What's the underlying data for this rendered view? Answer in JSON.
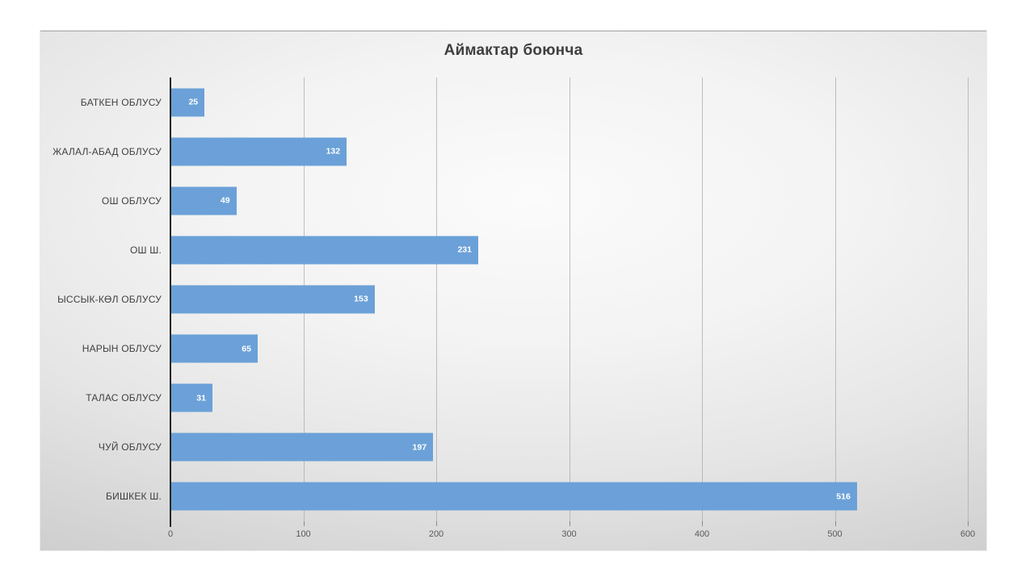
{
  "chart_data": {
    "type": "bar",
    "orientation": "horizontal",
    "title": "Аймактар боюнча",
    "categories": [
      "БАТКЕН ОБЛУСУ",
      "ЖАЛАЛ-АБАД ОБЛУСУ",
      "ОШ ОБЛУСУ",
      "ОШ Ш.",
      "ЫССЫК-КӨЛ ОБЛУСУ",
      "НАРЫН ОБЛУСУ",
      "ТАЛАС ОБЛУСУ",
      "ЧУЙ ОБЛУСУ",
      "БИШКЕК Ш."
    ],
    "values": [
      25,
      132,
      49,
      231,
      153,
      65,
      31,
      197,
      516
    ],
    "value_labels_position": "inside-end",
    "xlim": [
      0,
      600
    ],
    "xticks": [
      0,
      100,
      200,
      300,
      400,
      500,
      600
    ],
    "grid": true,
    "legend": false,
    "xlabel": "",
    "ylabel": ""
  },
  "colors": {
    "bar_fill": "#6BA1D8",
    "bar_value_text": "#FFFFFF",
    "title_text": "#3F3F3F",
    "category_text": "#404040",
    "tick_text": "#595959",
    "gridline": "#ABABAB",
    "value_axis_line": "#262626"
  }
}
